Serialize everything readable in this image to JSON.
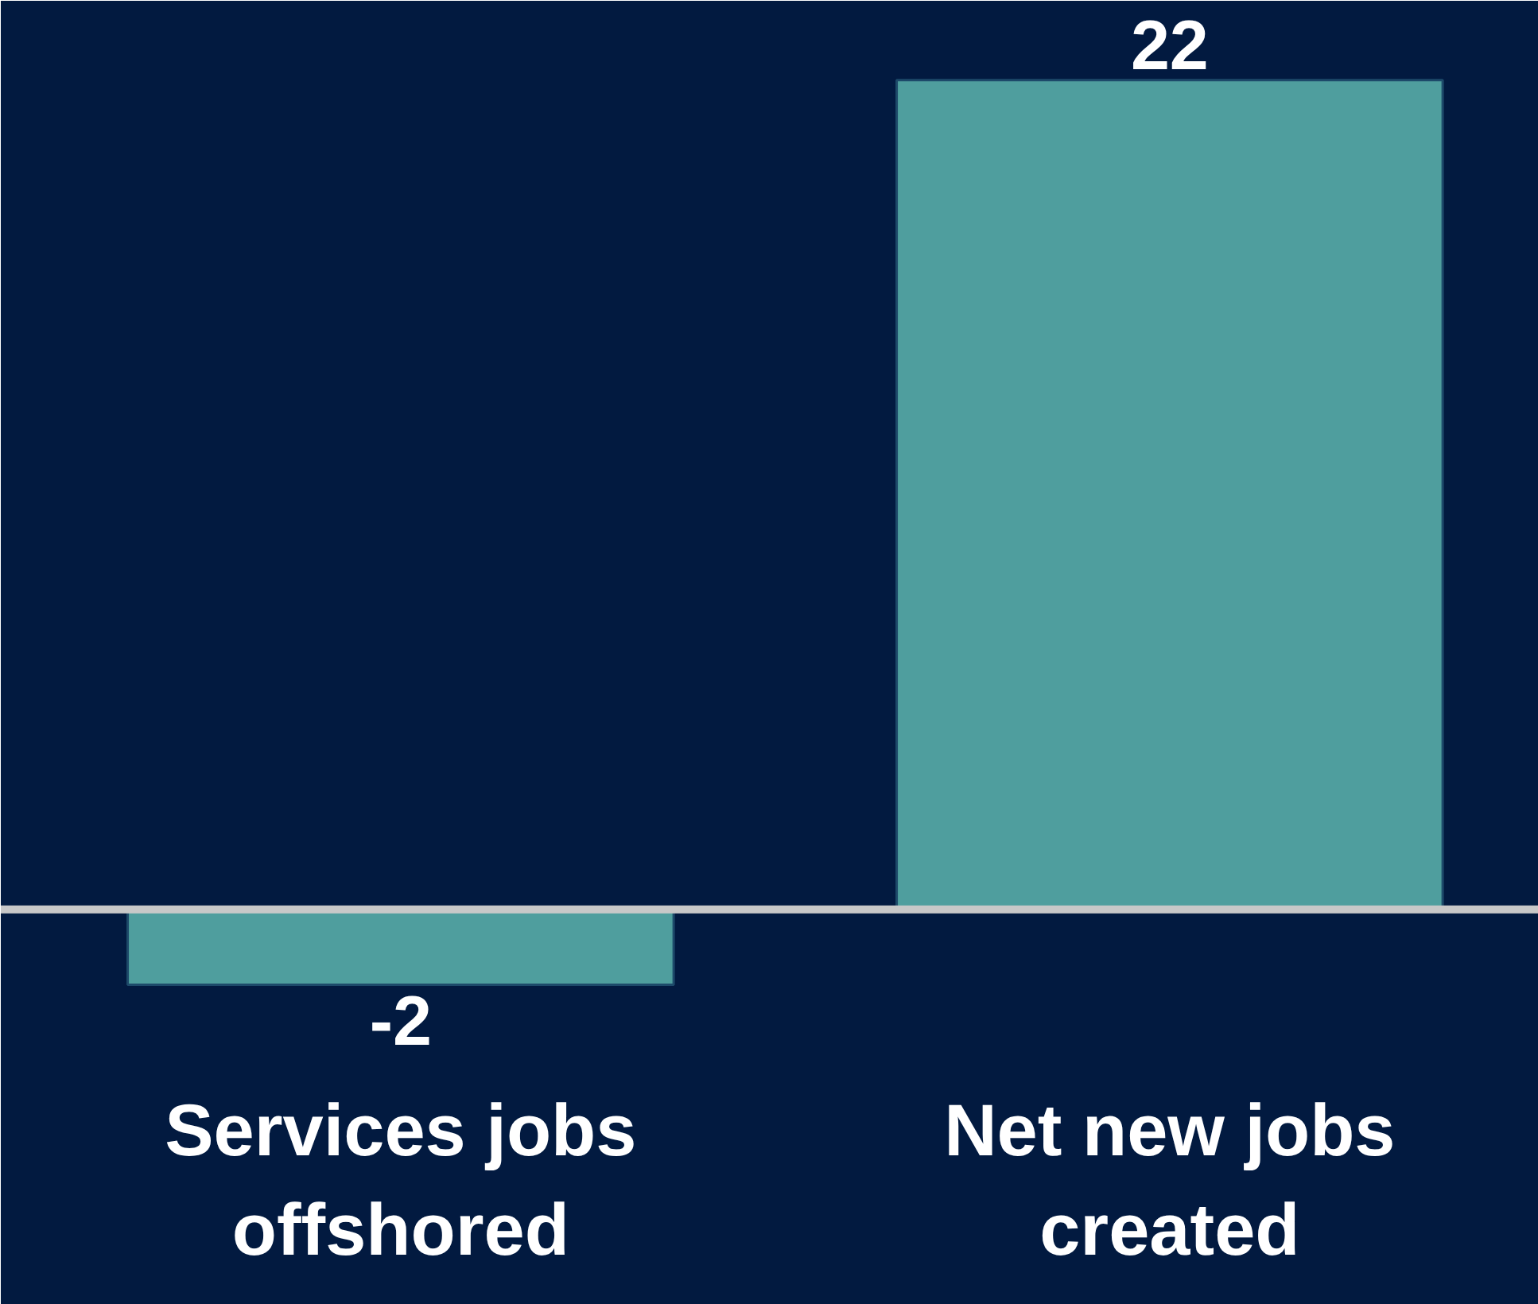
{
  "chart_data": {
    "type": "bar",
    "categories": [
      "Services jobs offshored",
      "Net new jobs created"
    ],
    "values": [
      -2,
      22
    ],
    "color": "#4f9e9e",
    "data_labels": true,
    "tick_labels": "x",
    "grid": false
  }
}
